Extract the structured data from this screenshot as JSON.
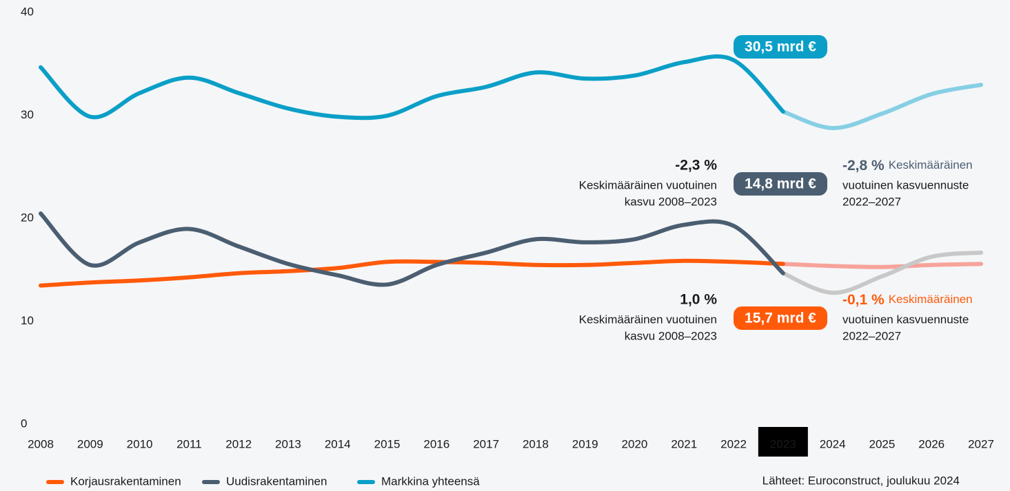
{
  "chart_data": {
    "type": "line",
    "categories": [
      "2008",
      "2009",
      "2010",
      "2011",
      "2012",
      "2013",
      "2014",
      "2015",
      "2016",
      "2017",
      "2018",
      "2019",
      "2020",
      "2021",
      "2022",
      "2023",
      "2024",
      "2025",
      "2026",
      "2027"
    ],
    "highlight_category": "2023",
    "ylim": [
      0,
      40
    ],
    "yticks": [
      0,
      10,
      20,
      30,
      40
    ],
    "series": [
      {
        "name": "Korjausrakentaminen",
        "color": "#ff5a0a",
        "forecast_color": "#f7a39a",
        "values": [
          13.6,
          13.9,
          14.1,
          14.4,
          14.8,
          15.0,
          15.3,
          15.9,
          15.9,
          15.8,
          15.6,
          15.6,
          15.8,
          16.0,
          15.9,
          15.7,
          15.5,
          15.4,
          15.6,
          15.7
        ]
      },
      {
        "name": "Uudisrakentaminen",
        "color": "#4b5e71",
        "forecast_color": "#c8c8c8",
        "values": [
          20.6,
          15.6,
          17.8,
          19.1,
          17.4,
          15.7,
          14.6,
          13.7,
          15.6,
          16.8,
          18.1,
          17.8,
          18.1,
          19.5,
          19.4,
          14.8,
          12.9,
          14.5,
          16.4,
          16.8
        ]
      },
      {
        "name": "Markkina yhteensä",
        "color": "#0b9fc7",
        "forecast_color": "#86cfe4",
        "values": [
          34.8,
          30.0,
          32.3,
          33.8,
          32.3,
          30.8,
          30.0,
          30.1,
          32.0,
          32.9,
          34.3,
          33.7,
          34.0,
          35.3,
          35.5,
          30.5,
          28.9,
          30.3,
          32.2,
          33.1
        ]
      }
    ],
    "annotations": [
      {
        "badge": "30,5 mrd €",
        "color": "#0b9fc7"
      },
      {
        "badge": "14,8 mrd €",
        "color": "#4b5e71",
        "left_value": "-2,3 %",
        "left_text": [
          "Keskimääräinen vuotuinen",
          "kasvu 2008–2023"
        ],
        "right_value": "-2,8 %",
        "right_text": [
          "Keskimääräinen",
          "vuotuinen kasvuennuste",
          "2022–2027"
        ]
      },
      {
        "badge": "15,7 mrd €",
        "color": "#ff5a0a",
        "left_value": "1,0 %",
        "left_text": [
          "Keskimääräinen vuotuinen",
          "kasvu 2008–2023"
        ],
        "right_value": "-0,1 %",
        "right_text": [
          "Keskimääräinen",
          "vuotuinen kasvuennuste",
          "2022–2027"
        ]
      }
    ],
    "source": "Lähteet: Euroconstruct, joulukuu 2024"
  }
}
